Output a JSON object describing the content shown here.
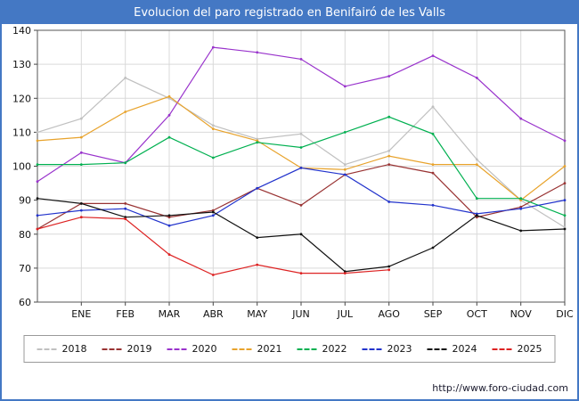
{
  "title": "Evolucion del paro registrado en Benifairó de les Valls",
  "footer": {
    "url": "http://www.foro-ciudad.com"
  },
  "chart_data": {
    "type": "line",
    "title": "Evolucion del paro registrado en Benifairó de les Valls",
    "xlabel": "",
    "ylabel": "",
    "ylim": [
      60,
      140
    ],
    "ytick_step": 10,
    "grid": true,
    "legend_position": "bottom",
    "x_labels": [
      "ENE",
      "FEB",
      "MAR",
      "ABR",
      "MAY",
      "JUN",
      "JUL",
      "AGO",
      "SEP",
      "OCT",
      "NOV",
      "DIC"
    ],
    "series_note": "First point of each series is the preceding December; remaining points are ENE-DIC. 2025 series ends at AGO.",
    "series": [
      {
        "name": "2018",
        "color": "#c0c0c0",
        "values": [
          110,
          114,
          126,
          120,
          112,
          108,
          109.5,
          100.5,
          104.5,
          117.5,
          102,
          90,
          82
        ]
      },
      {
        "name": "2019",
        "color": "#993333",
        "values": [
          81.5,
          89,
          89,
          85,
          87,
          93.5,
          88.5,
          97.5,
          100.5,
          98,
          85,
          88,
          95
        ]
      },
      {
        "name": "2020",
        "color": "#9933cc",
        "values": [
          95.5,
          104,
          101,
          115,
          135,
          133.5,
          131.5,
          123.5,
          126.5,
          132.5,
          126,
          114,
          107.5
        ]
      },
      {
        "name": "2021",
        "color": "#e8a32c",
        "values": [
          107.5,
          108.5,
          116,
          120.5,
          111,
          107.5,
          99.5,
          99,
          103,
          100.5,
          100.5,
          90,
          100
        ]
      },
      {
        "name": "2022",
        "color": "#00b050",
        "values": [
          100.5,
          100.5,
          101,
          108.5,
          102.5,
          107,
          105.5,
          110,
          114.5,
          109.5,
          90.5,
          90.5,
          85.5
        ]
      },
      {
        "name": "2023",
        "color": "#2233cc",
        "values": [
          85.5,
          87,
          87.5,
          82.5,
          85.5,
          93.5,
          99.5,
          97.5,
          89.5,
          88.5,
          86,
          87.5,
          90
        ]
      },
      {
        "name": "2024",
        "color": "#111111",
        "values": [
          90.5,
          89,
          85,
          85.5,
          86.5,
          79,
          80,
          69,
          70.5,
          76,
          85.5,
          81,
          81.5
        ]
      },
      {
        "name": "2025",
        "color": "#dd2222",
        "values": [
          81.5,
          85,
          84.5,
          74,
          68,
          71,
          68.5,
          68.5,
          69.5
        ]
      }
    ]
  }
}
